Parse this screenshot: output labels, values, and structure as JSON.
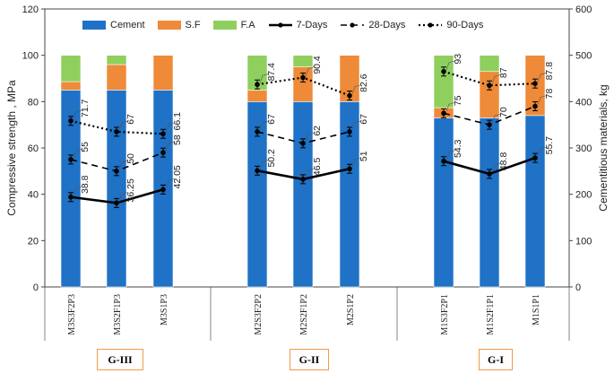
{
  "chart_data": {
    "type": "bar",
    "categories": [
      "M3S3F2P3",
      "M3S2F1P3",
      "M3S1P3",
      "M2S3F2P2",
      "M2S2F1P2",
      "M2S1P2",
      "M1S3F2P1",
      "M1S2F1P1",
      "M1S1P1"
    ],
    "groups": [
      {
        "label": "G-III",
        "categories": [
          "M3S3F2P3",
          "M3S2F1P3",
          "M3S1P3"
        ]
      },
      {
        "label": "G-II",
        "categories": [
          "M2S3F2P2",
          "M2S2F1P2",
          "M2S1P2"
        ]
      },
      {
        "label": "G-I",
        "categories": [
          "M1S3F2P1",
          "M1S2F1P1",
          "M1S1P1"
        ]
      }
    ],
    "bar_series": [
      {
        "name": "Cement",
        "color": "#1f72c6",
        "values": [
          425,
          425,
          425,
          400,
          400,
          400,
          365,
          365,
          370
        ]
      },
      {
        "name": "S.F",
        "color": "#ee8a38",
        "values": [
          18,
          55,
          75,
          25,
          75,
          100,
          22,
          100,
          130
        ]
      },
      {
        "name": "F.A",
        "color": "#8fcf5e",
        "values": [
          57,
          20,
          0,
          75,
          25,
          0,
          113,
          35,
          0
        ]
      }
    ],
    "line_series": [
      {
        "name": "7-Days",
        "style": "solid",
        "values": [
          38.8,
          36.25,
          42.05,
          50.2,
          46.5,
          51,
          54.3,
          48.8,
          55.7
        ],
        "labels": [
          "38.8",
          "36.25",
          "42.05",
          "50.2",
          "46.5",
          "51",
          "54.3",
          "48.8",
          "55.7"
        ],
        "plot_values": [
          38.8,
          36.25,
          42.05,
          50.2,
          46.5,
          51,
          54.3,
          48.8,
          55.7
        ]
      },
      {
        "name": "28-Days",
        "style": "dashed",
        "values": [
          55,
          50,
          58,
          67,
          62,
          67,
          75,
          70,
          78
        ],
        "labels": [
          "55",
          "50",
          "58",
          "67",
          "62",
          "67",
          "75",
          "70",
          "78"
        ],
        "plot_values": [
          55,
          50,
          58,
          67,
          62,
          67,
          75,
          70,
          78
        ]
      },
      {
        "name": "90-Days",
        "style": "dotted",
        "values": [
          71.7,
          67,
          66.1,
          87.4,
          90.4,
          82.6,
          93,
          87,
          87.8
        ],
        "labels": [
          "71.7",
          "67",
          "66.1",
          "87.4",
          "90.4",
          "82.6",
          "93",
          "87",
          "87.8"
        ],
        "plot_values": [
          71.7,
          67,
          66.1,
          87.4,
          90.4,
          82.6,
          93,
          87,
          87.8
        ]
      }
    ],
    "ylabel": "Compressive strength , MPa",
    "y2label": "Cementitious materials, kg",
    "ylim": [
      0,
      120
    ],
    "y2lim": [
      0,
      600
    ],
    "yticks": [
      0,
      20,
      40,
      60,
      80,
      100,
      120
    ],
    "y2ticks": [
      0,
      100,
      200,
      300,
      400,
      500,
      600
    ],
    "legend_position": "top",
    "grid": false
  }
}
